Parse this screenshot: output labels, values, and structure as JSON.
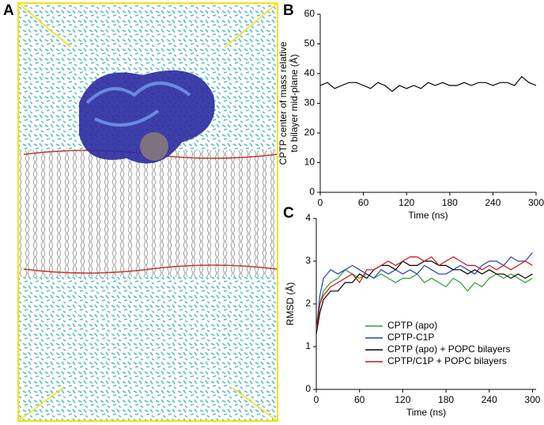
{
  "panels": [
    "A",
    "B",
    "C"
  ],
  "chart_data": [
    {
      "type": "line",
      "ylabel": [
        "CPTP center of mass relative",
        "to bilayer mid-plane (Å)"
      ],
      "xlabel": "Time (ns)",
      "x": [
        0,
        10,
        20,
        30,
        40,
        50,
        60,
        70,
        80,
        90,
        100,
        110,
        120,
        130,
        140,
        150,
        160,
        170,
        180,
        190,
        200,
        210,
        220,
        230,
        240,
        250,
        260,
        270,
        280,
        290,
        300
      ],
      "series": [
        {
          "color": "#000000",
          "values": [
            36,
            37,
            35,
            36,
            37,
            37,
            36,
            35,
            37,
            36,
            34,
            36,
            35,
            36,
            35,
            37,
            36,
            37,
            36,
            36,
            37,
            36,
            37,
            37,
            36,
            37,
            37,
            36,
            39,
            37,
            36
          ]
        }
      ],
      "xlim": [
        0,
        300
      ],
      "xticks": [
        0,
        60,
        120,
        180,
        240,
        300
      ],
      "ylim": [
        0,
        60
      ],
      "yticks": [
        0,
        10,
        20,
        30,
        40,
        50,
        60
      ]
    },
    {
      "type": "line",
      "ylabel": [
        "RMSD (Å)"
      ],
      "xlabel": "Time (ns)",
      "x": [
        0,
        5,
        10,
        20,
        30,
        40,
        50,
        60,
        70,
        80,
        90,
        100,
        110,
        120,
        130,
        140,
        150,
        160,
        170,
        180,
        190,
        200,
        210,
        220,
        230,
        240,
        250,
        260,
        270,
        280,
        290,
        300
      ],
      "series": [
        {
          "name": "CPTP (apo)",
          "color": "#2ca02c",
          "values": [
            1.3,
            2.0,
            2.3,
            2.5,
            2.6,
            2.8,
            2.7,
            2.6,
            2.7,
            2.6,
            2.7,
            2.6,
            2.5,
            2.6,
            2.6,
            2.7,
            2.5,
            2.6,
            2.5,
            2.4,
            2.6,
            2.5,
            2.3,
            2.5,
            2.4,
            2.6,
            2.7,
            2.6,
            2.7,
            2.6,
            2.5,
            2.6
          ]
        },
        {
          "name": "CPTP-C1P",
          "color": "#2040c0",
          "values": [
            1.4,
            2.2,
            2.6,
            2.8,
            2.7,
            2.8,
            2.9,
            2.8,
            2.7,
            2.6,
            2.8,
            2.7,
            2.8,
            2.7,
            2.8,
            2.7,
            2.9,
            2.8,
            2.7,
            2.7,
            2.8,
            2.9,
            2.8,
            2.7,
            2.9,
            3.0,
            3.0,
            2.9,
            3.1,
            3.0,
            3.0,
            3.2
          ]
        },
        {
          "name": "CPTP (apo) + POPC bilayers",
          "color": "#000000",
          "values": [
            1.3,
            1.8,
            2.1,
            2.3,
            2.3,
            2.5,
            2.5,
            2.7,
            2.6,
            2.8,
            2.9,
            2.9,
            2.8,
            3.0,
            2.9,
            2.9,
            3.0,
            3.0,
            2.9,
            2.9,
            2.8,
            2.8,
            2.7,
            2.8,
            2.7,
            2.8,
            2.7,
            2.7,
            2.6,
            2.7,
            2.6,
            2.7
          ]
        },
        {
          "name": "CPTP/C1P + POPC bilayers",
          "color": "#d01010",
          "values": [
            1.4,
            2.0,
            2.2,
            2.4,
            2.5,
            2.6,
            2.7,
            2.5,
            2.8,
            2.8,
            2.9,
            3.0,
            2.9,
            3.0,
            3.1,
            3.1,
            3.0,
            3.1,
            2.9,
            3.0,
            3.1,
            3.0,
            2.9,
            2.9,
            2.8,
            2.9,
            2.8,
            2.9,
            2.8,
            2.9,
            3.0,
            2.9
          ]
        }
      ],
      "xlim": [
        0,
        305
      ],
      "xticks": [
        0,
        60,
        120,
        180,
        240,
        300
      ],
      "ylim": [
        0,
        4
      ],
      "yticks": [
        0,
        1,
        2,
        3,
        4
      ]
    }
  ]
}
